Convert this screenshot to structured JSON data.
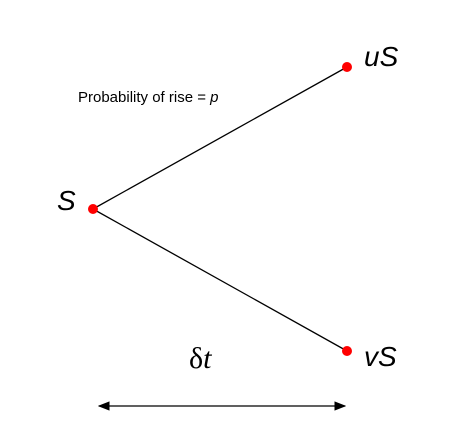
{
  "diagram": {
    "nodes": {
      "start": {
        "label": "S",
        "color": "#ff0000"
      },
      "up": {
        "label": "uS",
        "color": "#ff0000"
      },
      "down": {
        "label": "vS",
        "color": "#ff0000"
      }
    },
    "probability": {
      "text": "Probability of rise = ",
      "symbol": "p"
    },
    "time_step": {
      "prefix": "δ",
      "symbol": "t"
    },
    "line_color": "#000000"
  }
}
